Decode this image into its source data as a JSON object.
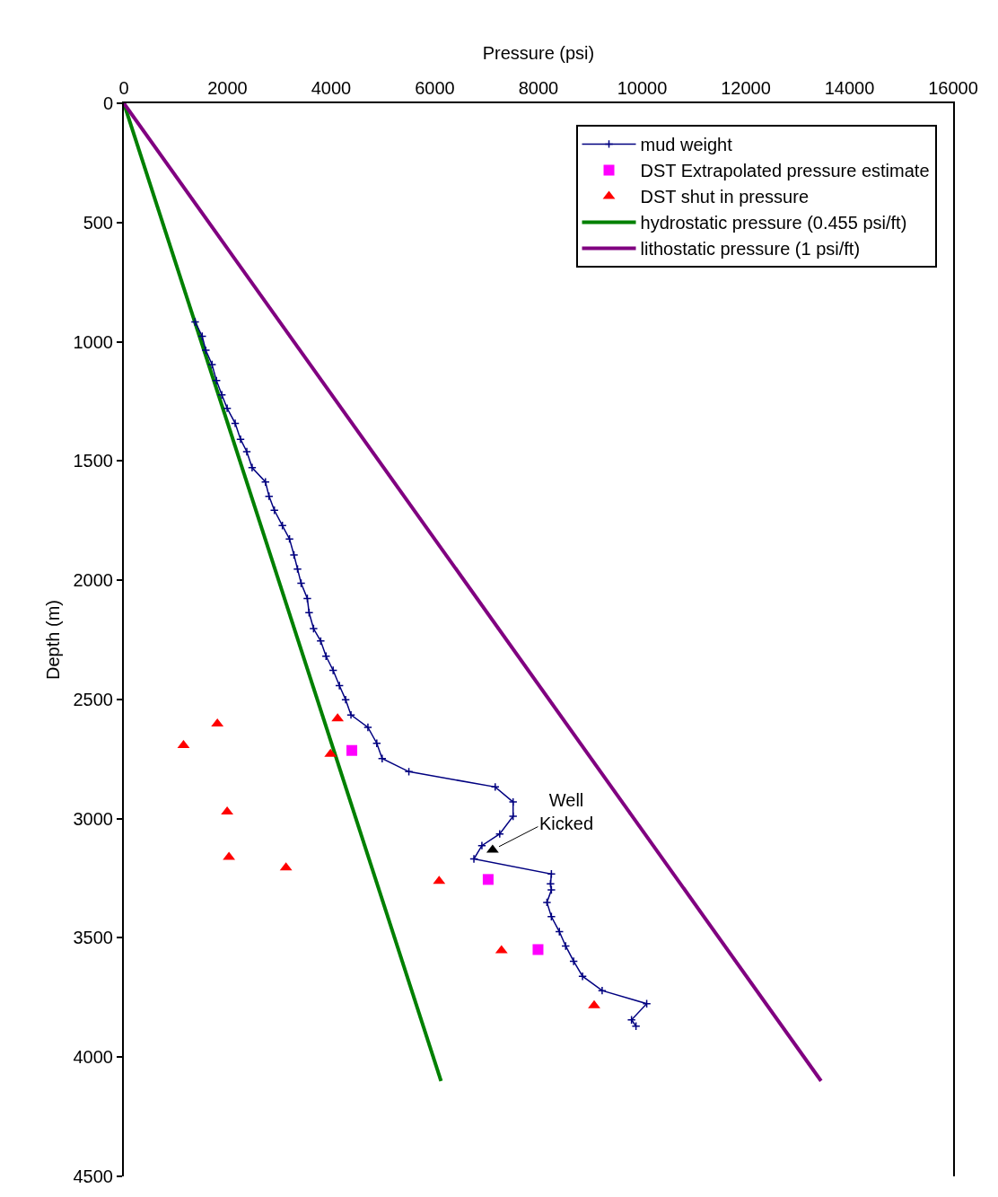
{
  "chart_data": {
    "type": "line",
    "xlabel": "Pressure (psi)",
    "ylabel": "Depth (m)",
    "xlim": [
      0,
      16000
    ],
    "xticks": [
      0,
      2000,
      4000,
      6000,
      8000,
      10000,
      12000,
      14000,
      16000
    ],
    "ylim": [
      4500,
      0
    ],
    "yticks": [
      0,
      500,
      1000,
      1500,
      2000,
      2500,
      3000,
      3500,
      4000,
      4500
    ],
    "grid": false,
    "legend": "top right",
    "series": [
      {
        "name": "mud weight",
        "color": "#000080",
        "marker": "cross",
        "x": [
          1375,
          1512,
          1581,
          1701,
          1787,
          1890,
          1993,
          2148,
          2251,
          2372,
          2475,
          2732,
          2801,
          2904,
          3059,
          3196,
          3282,
          3351,
          3420,
          3540,
          3574,
          3660,
          3798,
          3901,
          4038,
          4159,
          4279,
          4382,
          4709,
          4880,
          4984,
          5499,
          7165,
          7510,
          7510,
          7252,
          6908,
          6754,
          8249,
          8232,
          8249,
          8163,
          8249,
          8403,
          8524,
          8678,
          8850,
          9228,
          10088,
          9795,
          9881
        ],
        "values": [
          917,
          977,
          1036,
          1096,
          1163,
          1223,
          1279,
          1342,
          1409,
          1461,
          1528,
          1588,
          1648,
          1707,
          1771,
          1827,
          1894,
          1953,
          2013,
          2077,
          2136,
          2203,
          2255,
          2319,
          2378,
          2442,
          2501,
          2565,
          2617,
          2684,
          2748,
          2803,
          2867,
          2930,
          2990,
          3064,
          3113,
          3169,
          3232,
          3273,
          3299,
          3351,
          3411,
          3474,
          3534,
          3598,
          3661,
          3721,
          3776,
          3844,
          3870
        ]
      },
      {
        "name": "DST Extrapolated pressure estimate",
        "type": "scatter",
        "color": "#ff00ff",
        "marker": "square",
        "x": [
          4399,
          7029,
          7991
        ],
        "values": [
          2714,
          3255,
          3549
        ]
      },
      {
        "name": "DST shut in pressure",
        "type": "scatter",
        "color": "#ff0000",
        "marker": "triangle",
        "x": [
          1804,
          1151,
          1993,
          2028,
          3128,
          4124,
          3987,
          6083,
          7286,
          9074
        ],
        "values": [
          2602,
          2692,
          2971,
          3161,
          3206,
          2580,
          2729,
          3262,
          3553,
          3784
        ]
      },
      {
        "name": "hydrostatic pressure (0.455 psi/ft)",
        "color": "#008000",
        "marker": "none",
        "x": [
          0,
          6120
        ],
        "values": [
          0,
          4100
        ]
      },
      {
        "name": "lithostatic pressure (1 psi/ft)",
        "color": "#800080",
        "marker": "none",
        "x": [
          0,
          13452
        ],
        "values": [
          0,
          4100
        ]
      },
      {
        "type": "scatter",
        "color": "#000000",
        "marker": "triangle",
        "x": [
          7115
        ],
        "values": [
          3131
        ]
      }
    ],
    "annotations": [
      {
        "text": "Well\nKicked",
        "x": 7115,
        "y": 3131
      }
    ]
  }
}
